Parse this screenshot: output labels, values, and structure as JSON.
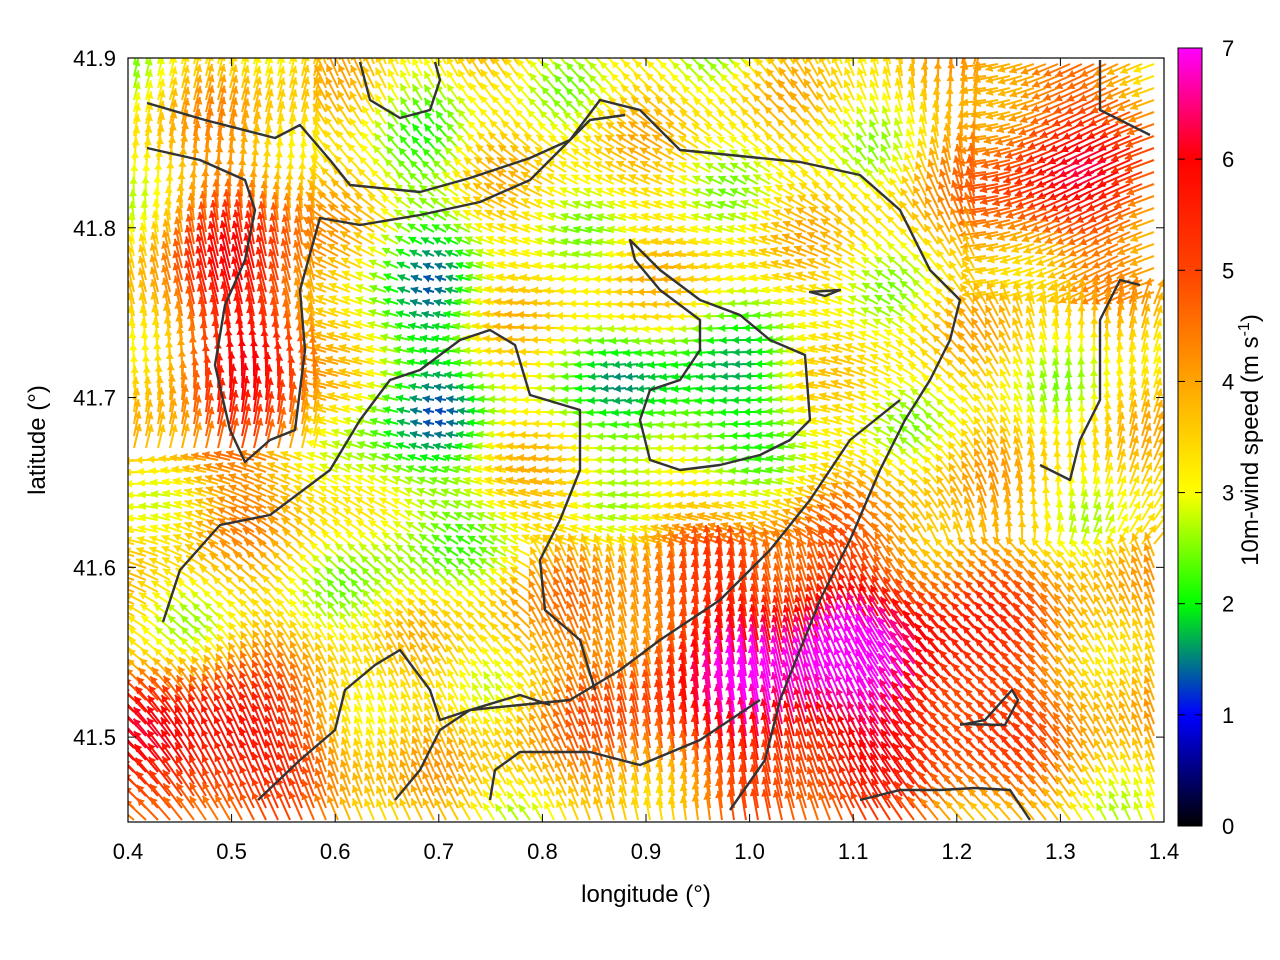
{
  "chart_data": {
    "type": "vector-field",
    "xlabel": "longitude (°)",
    "ylabel": "latitude (°)",
    "xlim": [
      0.4,
      1.4
    ],
    "ylim": [
      41.45,
      41.9
    ],
    "xticks": [
      "0.4",
      "0.5",
      "0.6",
      "0.7",
      "0.8",
      "0.9",
      "1.0",
      "1.1",
      "1.2",
      "1.3",
      "1.4"
    ],
    "yticks": [
      "41.5",
      "41.6",
      "41.7",
      "41.8",
      "41.9"
    ],
    "colorbar": {
      "label_main": "10m-wind speed (m s",
      "label_sup": "-1",
      "label_close": ")",
      "range": [
        0,
        7
      ],
      "ticks": [
        "0",
        "1",
        "2",
        "3",
        "4",
        "5",
        "6",
        "7"
      ],
      "palette": [
        "#000000",
        "#0000ff",
        "#00ff00",
        "#ffff00",
        "#ffa500",
        "#ff4500",
        "#ff0000",
        "#ff00ff"
      ]
    },
    "grid": false,
    "legend": "none"
  }
}
